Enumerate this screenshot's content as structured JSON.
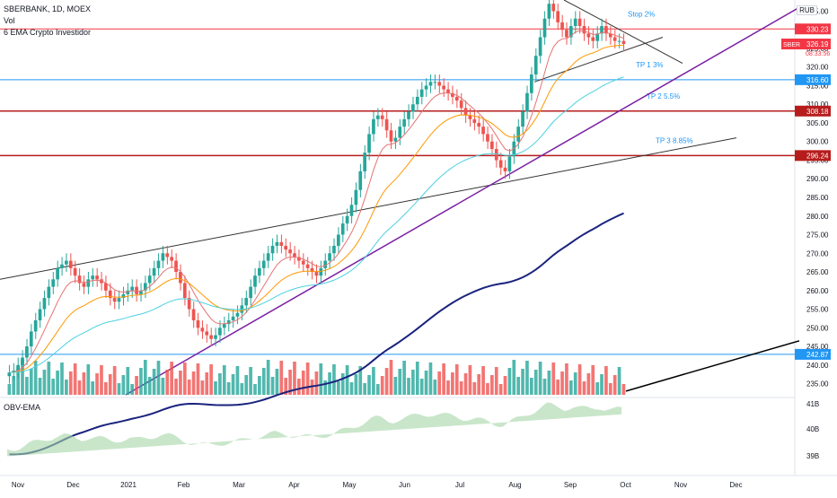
{
  "header": {
    "symbol_line": "SBERBANK, 1D, MOEX",
    "vol_label": "Vol",
    "ema_label": "6 EMA Crypto Investidor",
    "currency": "RUB"
  },
  "obv_label": "OBV-EMA",
  "chart_data": {
    "type": "candlestick",
    "ylim": [
      232,
      338
    ],
    "y_ticks": [
      235,
      240,
      245,
      250,
      255,
      260,
      265,
      270,
      275,
      280,
      285,
      290,
      295,
      300,
      305,
      310,
      315,
      320,
      325,
      330,
      335
    ],
    "x_ticks": [
      "Nov",
      "Dec",
      "2021",
      "Feb",
      "Mar",
      "Apr",
      "May",
      "Jun",
      "Jul",
      "Aug",
      "Sep",
      "Oct",
      "Nov",
      "Dec"
    ],
    "closes": [
      238,
      238.5,
      240,
      242,
      245,
      249,
      252,
      255,
      258,
      261,
      263,
      266,
      267,
      268,
      266,
      264,
      262,
      261,
      263,
      264,
      263,
      262,
      260,
      258,
      257,
      258,
      259,
      260,
      261,
      259,
      260,
      262,
      264,
      266,
      268,
      270,
      269,
      268,
      265,
      262,
      258,
      255,
      252,
      250,
      249,
      248,
      247,
      248,
      250,
      251,
      252,
      253,
      254,
      256,
      258,
      261,
      264,
      266,
      268,
      270,
      272,
      273,
      272,
      271,
      270,
      269,
      268,
      267,
      266,
      265,
      264,
      266,
      268,
      270,
      272,
      275,
      278,
      280,
      283,
      287,
      292,
      297,
      302,
      306,
      307,
      306,
      303,
      300,
      301,
      304,
      306,
      308,
      310,
      312,
      314,
      315,
      316,
      316,
      315,
      314,
      313,
      312,
      311,
      309,
      307,
      306,
      305,
      304,
      302,
      300,
      298,
      295,
      293,
      292,
      296,
      300,
      304,
      308,
      313,
      318,
      323,
      328,
      333,
      337,
      335,
      332,
      330,
      328,
      331,
      333,
      331,
      329,
      328,
      327,
      329,
      331,
      329,
      328,
      327,
      327,
      326.19
    ],
    "last_price": 326.19,
    "countdown": "08:33:56",
    "symbol_tag": "SBER",
    "levels": [
      {
        "label": "Stop 2%",
        "price": 330.23,
        "color": "#f23645"
      },
      {
        "label": "TP 1 3%",
        "price": 316.6,
        "color": "#2196f3"
      },
      {
        "label": "TP 2 5.5%",
        "price": 308.18,
        "color": "#b71c1c"
      },
      {
        "label": "TP 3 8.85%",
        "price": 296.24,
        "color": "#b71c1c"
      },
      {
        "label": "",
        "price": 242.87,
        "color": "#2196f3"
      }
    ],
    "price_tags": [
      "330.23",
      "326.19",
      "316.60",
      "308.18",
      "296.24",
      "242.87"
    ],
    "obv_ticks": [
      "41B",
      "40B",
      "39B"
    ],
    "colors": {
      "up": "#26a69a",
      "down": "#ef5350",
      "ema_slow": "#1a237e",
      "trend": "#7b1fa2",
      "ema_orange": "#ff9800",
      "ema_cyan": "#4dd0e1",
      "ema_red": "#e57373"
    }
  }
}
